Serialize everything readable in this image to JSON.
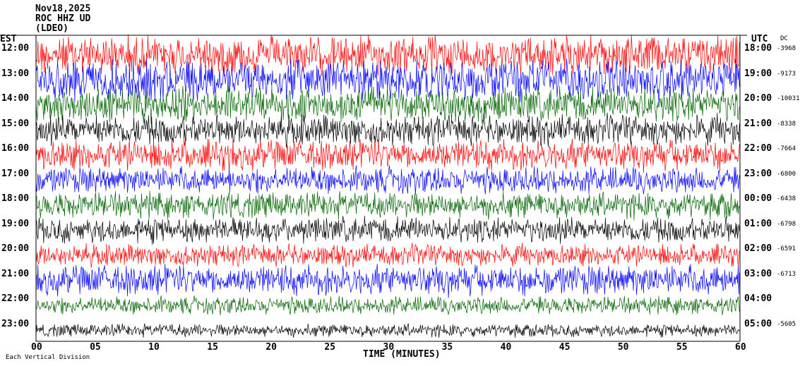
{
  "header": {
    "date": "Nov18,2025",
    "station": "ROC HHZ UD",
    "network": "(LDEO)",
    "left_tz": "EST",
    "right_tz": "UTC",
    "dc_label": "DC"
  },
  "footer": {
    "xlabel": "TIME (MINUTES)",
    "note": "Each Vertical Division"
  },
  "chart_data": {
    "type": "line",
    "title": "Nov18,2025 ROC HHZ UD (LDEO)",
    "xlabel": "TIME (MINUTES)",
    "xlim": [
      0,
      60
    ],
    "x_ticks": [
      "00",
      "05",
      "10",
      "15",
      "20",
      "25",
      "30",
      "35",
      "40",
      "45",
      "50",
      "55",
      "60"
    ],
    "left_ticks": [
      "12:00",
      "13:00",
      "14:00",
      "15:00",
      "16:00",
      "17:00",
      "18:00",
      "19:00",
      "20:00",
      "21:00",
      "22:00",
      "23:00"
    ],
    "right_ticks": [
      "18:00",
      "19:00",
      "20:00",
      "21:00",
      "22:00",
      "23:00",
      "00:00",
      "01:00",
      "02:00",
      "03:00",
      "04:00",
      "05:00"
    ],
    "dc_offsets": [
      "-3968",
      "-9173",
      "-10031",
      "-8338",
      "-7664",
      "-6800",
      "-6438",
      "-6798",
      "-6591",
      "-6713",
      "",
      "-5605"
    ],
    "trace_colors": [
      "#ff0000",
      "#0000ff",
      "#006400",
      "#000000"
    ],
    "traces": [
      {
        "label": "12:00",
        "color": "#ff0000",
        "amplitude": 0.9
      },
      {
        "label": "13:00",
        "color": "#0000ff",
        "amplitude": 0.95
      },
      {
        "label": "14:00",
        "color": "#006400",
        "amplitude": 0.8
      },
      {
        "label": "15:00",
        "color": "#000000",
        "amplitude": 0.7
      },
      {
        "label": "16:00",
        "color": "#ff0000",
        "amplitude": 0.7
      },
      {
        "label": "17:00",
        "color": "#0000ff",
        "amplitude": 0.6
      },
      {
        "label": "18:00",
        "color": "#006400",
        "amplitude": 0.6
      },
      {
        "label": "19:00",
        "color": "#000000",
        "amplitude": 0.6
      },
      {
        "label": "20:00",
        "color": "#ff0000",
        "amplitude": 0.5
      },
      {
        "label": "21:00",
        "color": "#0000ff",
        "amplitude": 0.7
      },
      {
        "label": "22:00",
        "color": "#006400",
        "amplitude": 0.4
      },
      {
        "label": "23:00",
        "color": "#000000",
        "amplitude": 0.3
      }
    ]
  }
}
